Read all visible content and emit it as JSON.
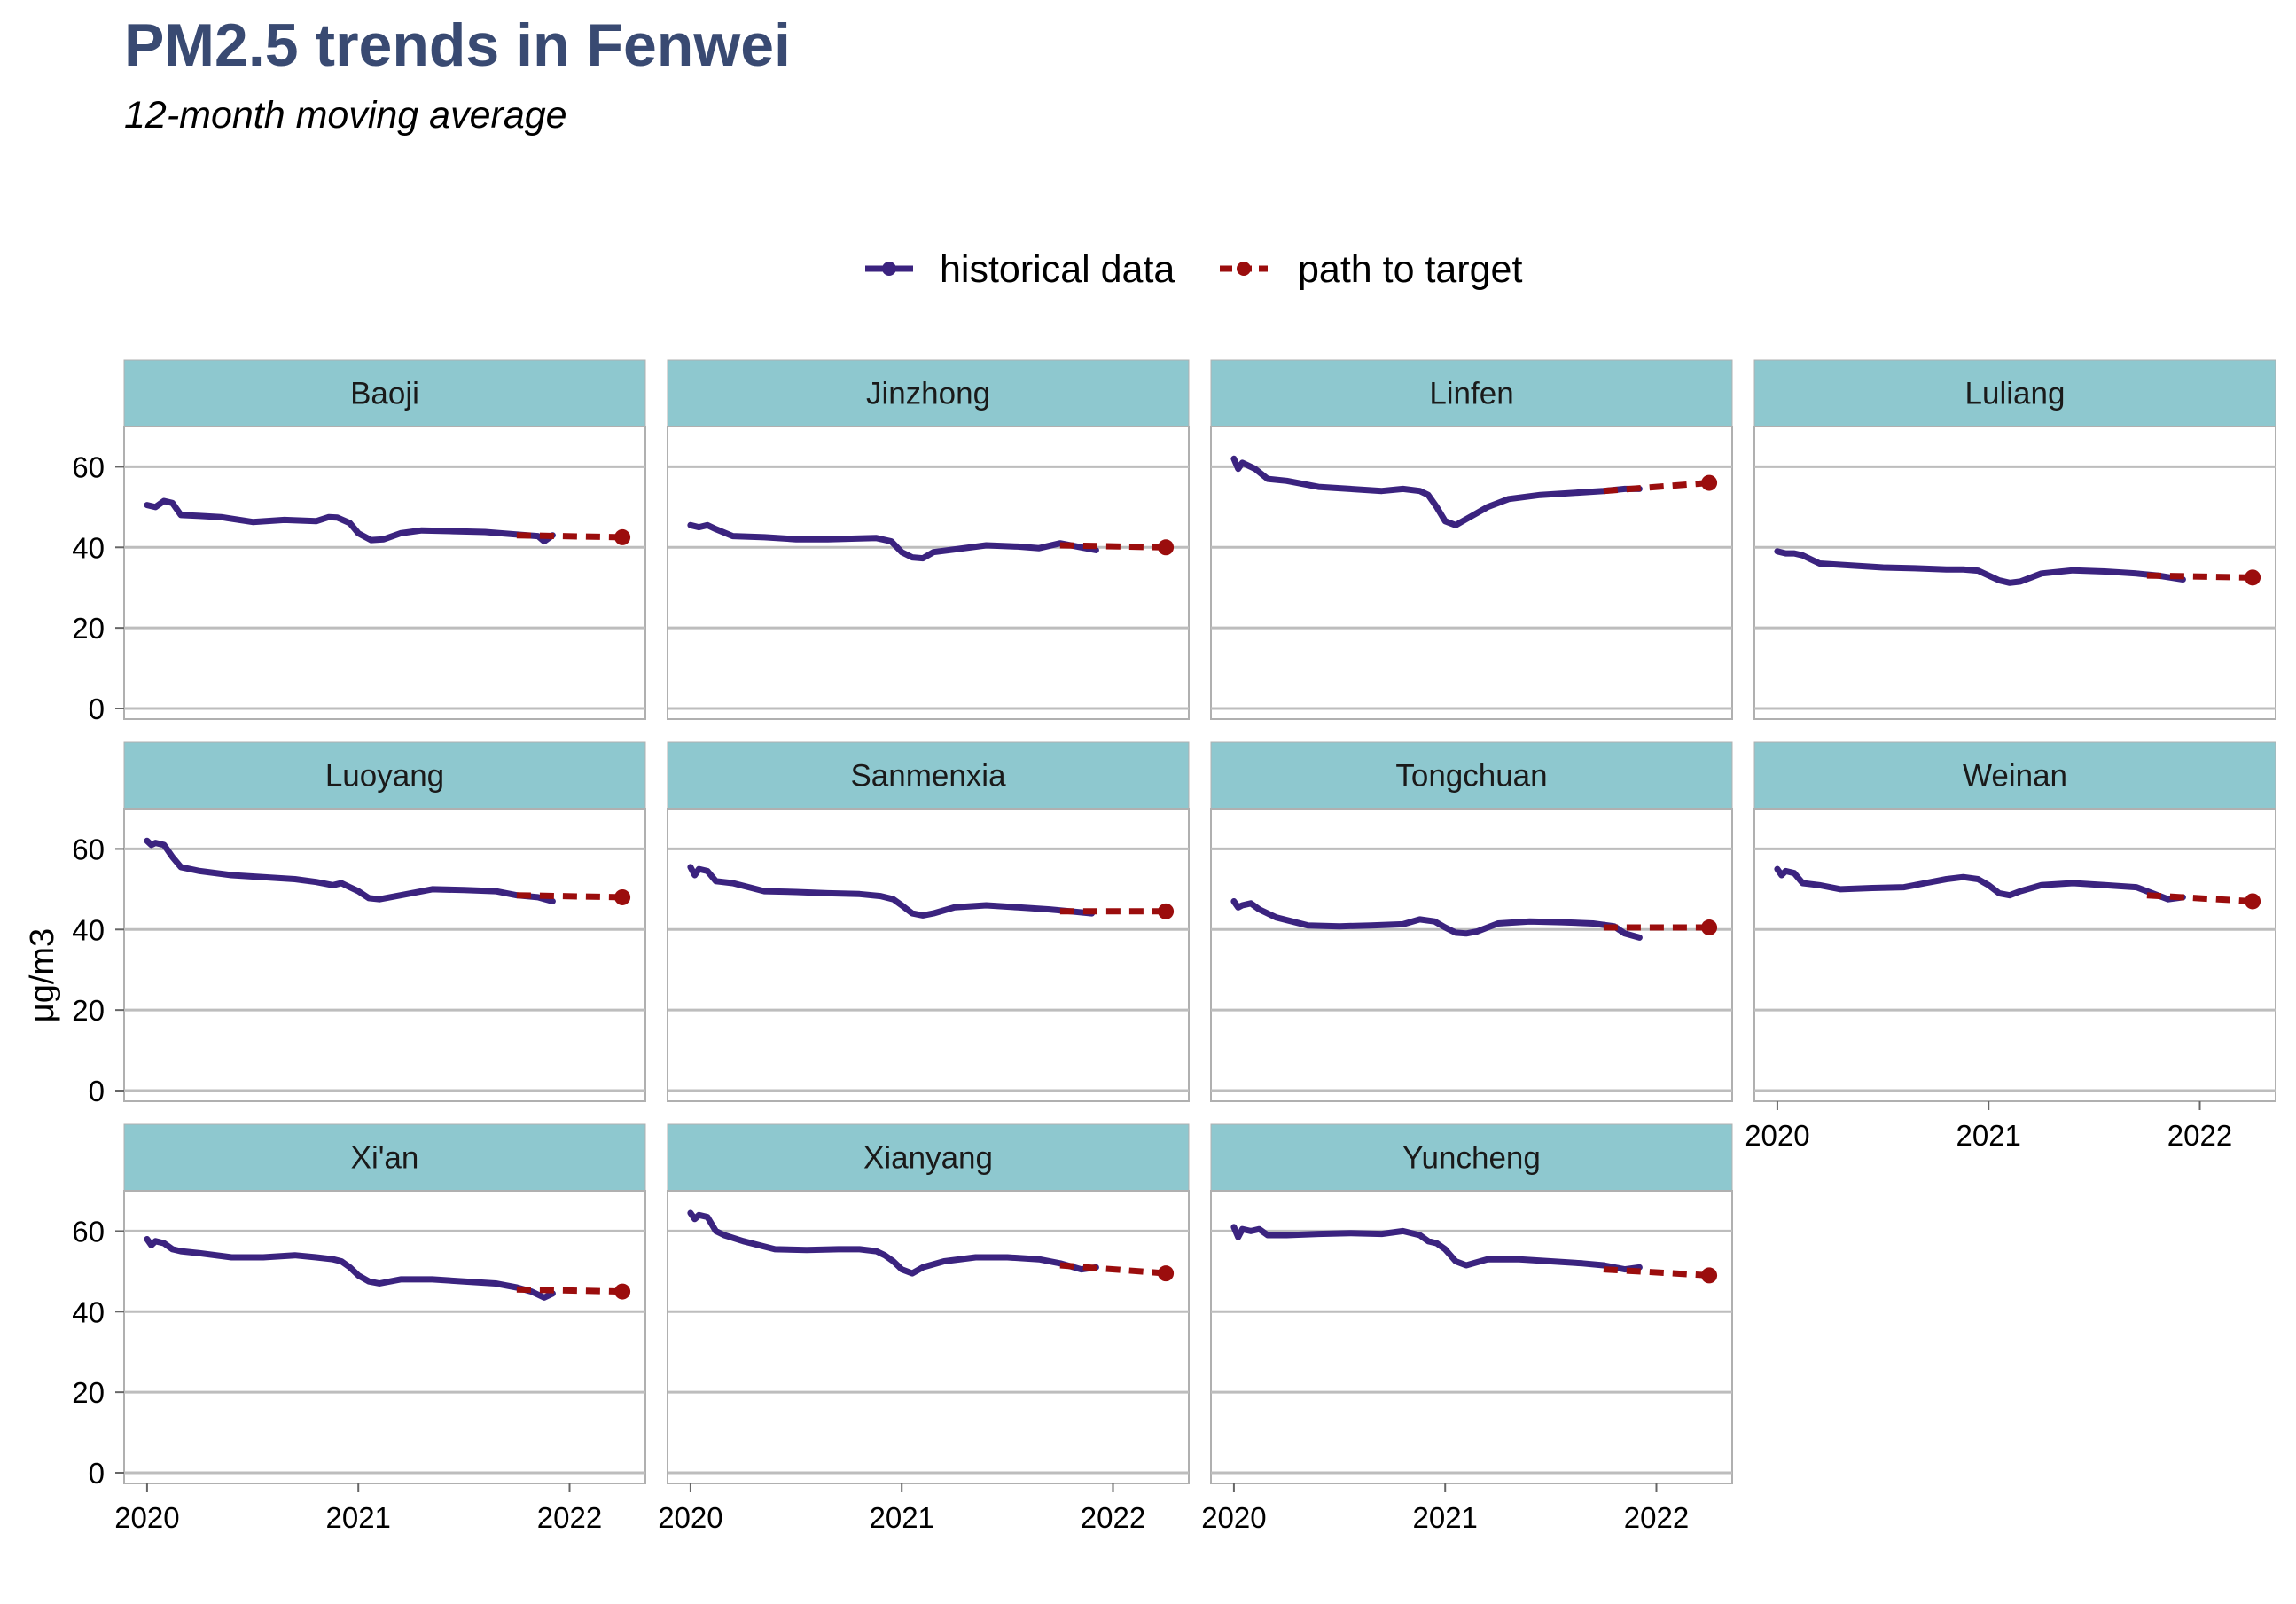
{
  "title": "PM2.5 trends in Fenwei",
  "subtitle": "12-month moving average",
  "legend": {
    "items": [
      {
        "label": "historical data",
        "color": "#3b237f",
        "style": "solid"
      },
      {
        "label": "path to target",
        "color": "#9b0d0d",
        "style": "dashed"
      }
    ]
  },
  "colors": {
    "strip": "#8ec8cf",
    "historical": "#3b237f",
    "target": "#9b0d0d",
    "grid": "#bdbdbd",
    "panel_border": "#b0b0b0"
  },
  "chart_data": {
    "type": "line",
    "facet": "city",
    "ylabel": "μg/m3",
    "xlabel": "",
    "ylim": [
      0,
      70
    ],
    "yticks": [
      0,
      20,
      40,
      60
    ],
    "xlim": [
      2019.95,
      2022.3
    ],
    "xticks": [
      2020,
      2021,
      2022
    ],
    "xtick_labels": [
      "2020",
      "2021",
      "2022"
    ],
    "grid": "horizontal",
    "legend_position": "top",
    "panels": [
      {
        "city": "Baoji",
        "historical": {
          "x": [
            2020.0,
            2020.04,
            2020.08,
            2020.12,
            2020.16,
            2020.25,
            2020.35,
            2020.5,
            2020.65,
            2020.8,
            2020.86,
            2020.9,
            2020.96,
            2021.0,
            2021.06,
            2021.12,
            2021.2,
            2021.3,
            2021.45,
            2021.6,
            2021.72,
            2021.8,
            2021.85,
            2021.88,
            2021.92
          ],
          "y": [
            50.5,
            50,
            51.5,
            51,
            48,
            47.8,
            47.5,
            46.3,
            46.8,
            46.5,
            47.5,
            47.4,
            46,
            43.5,
            41.8,
            42,
            43.5,
            44.2,
            44,
            43.8,
            43.3,
            43,
            42.8,
            41.5,
            43
          ]
        },
        "target": {
          "x": [
            2021.75,
            2022.25
          ],
          "y": [
            43,
            42.5
          ]
        }
      },
      {
        "city": "Jinzhong",
        "historical": {
          "x": [
            2020.0,
            2020.04,
            2020.08,
            2020.12,
            2020.2,
            2020.35,
            2020.5,
            2020.65,
            2020.8,
            2020.88,
            2020.95,
            2021.0,
            2021.05,
            2021.1,
            2021.15,
            2021.25,
            2021.4,
            2021.55,
            2021.65,
            2021.75,
            2021.85,
            2021.92
          ],
          "y": [
            45.5,
            45,
            45.5,
            44.5,
            42.8,
            42.5,
            42,
            42,
            42.2,
            42.3,
            41.5,
            38.8,
            37.5,
            37.3,
            38.8,
            39.5,
            40.5,
            40.2,
            39.8,
            41,
            40,
            39.3
          ]
        },
        "target": {
          "x": [
            2021.75,
            2022.25
          ],
          "y": [
            40.5,
            40
          ]
        }
      },
      {
        "city": "Linfen",
        "historical": {
          "x": [
            2020.0,
            2020.02,
            2020.04,
            2020.06,
            2020.1,
            2020.16,
            2020.25,
            2020.4,
            2020.55,
            2020.7,
            2020.8,
            2020.88,
            2020.92,
            2020.96,
            2021.0,
            2021.05,
            2021.1,
            2021.2,
            2021.3,
            2021.45,
            2021.6,
            2021.75,
            2021.85,
            2021.92
          ],
          "y": [
            62,
            59.5,
            61,
            60.5,
            59.5,
            57,
            56.5,
            55,
            54.5,
            54,
            54.5,
            54,
            53,
            50,
            46.5,
            45.5,
            47,
            50,
            52,
            53,
            53.5,
            54,
            54.5,
            54.5
          ]
        },
        "target": {
          "x": [
            2021.75,
            2022.25
          ],
          "y": [
            54,
            56
          ]
        }
      },
      {
        "city": "Luliang",
        "historical": {
          "x": [
            2020.0,
            2020.04,
            2020.08,
            2020.12,
            2020.2,
            2020.35,
            2020.5,
            2020.65,
            2020.8,
            2020.88,
            2020.95,
            2021.0,
            2021.05,
            2021.1,
            2021.15,
            2021.25,
            2021.4,
            2021.55,
            2021.7,
            2021.8,
            2021.92
          ],
          "y": [
            39,
            38.5,
            38.5,
            38,
            36,
            35.5,
            35,
            34.8,
            34.5,
            34.5,
            34.2,
            33,
            31.8,
            31.2,
            31.5,
            33.5,
            34.3,
            34,
            33.5,
            33,
            32
          ]
        },
        "target": {
          "x": [
            2021.75,
            2022.25
          ],
          "y": [
            33,
            32.5
          ]
        }
      },
      {
        "city": "Luoyang",
        "historical": {
          "x": [
            2020.0,
            2020.02,
            2020.04,
            2020.08,
            2020.12,
            2020.16,
            2020.25,
            2020.4,
            2020.55,
            2020.7,
            2020.8,
            2020.88,
            2020.92,
            2020.96,
            2021.0,
            2021.05,
            2021.1,
            2021.2,
            2021.35,
            2021.5,
            2021.65,
            2021.75,
            2021.85,
            2021.92
          ],
          "y": [
            62,
            61,
            61.5,
            61,
            58,
            55.5,
            54.5,
            53.5,
            53,
            52.5,
            51.8,
            51,
            51.5,
            50.5,
            49.5,
            47.8,
            47.5,
            48.5,
            50,
            49.8,
            49.5,
            48.5,
            48,
            47
          ]
        },
        "target": {
          "x": [
            2021.75,
            2022.25
          ],
          "y": [
            48.5,
            48
          ]
        }
      },
      {
        "city": "Sanmenxia",
        "historical": {
          "x": [
            2020.0,
            2020.02,
            2020.04,
            2020.08,
            2020.12,
            2020.2,
            2020.35,
            2020.5,
            2020.65,
            2020.8,
            2020.9,
            2020.96,
            2021.0,
            2021.05,
            2021.1,
            2021.15,
            2021.25,
            2021.4,
            2021.55,
            2021.7,
            2021.8,
            2021.9
          ],
          "y": [
            55.5,
            53.5,
            55,
            54.5,
            52,
            51.5,
            49.5,
            49.3,
            49,
            48.8,
            48.3,
            47.5,
            46,
            44,
            43.5,
            44,
            45.5,
            46,
            45.5,
            45,
            44.5,
            44
          ]
        },
        "target": {
          "x": [
            2021.75,
            2022.25
          ],
          "y": [
            44.5,
            44.5
          ]
        }
      },
      {
        "city": "Tongchuan",
        "historical": {
          "x": [
            2020.0,
            2020.02,
            2020.04,
            2020.08,
            2020.12,
            2020.2,
            2020.35,
            2020.5,
            2020.65,
            2020.8,
            2020.88,
            2020.95,
            2021.0,
            2021.05,
            2021.1,
            2021.15,
            2021.25,
            2021.4,
            2021.55,
            2021.7,
            2021.8,
            2021.85,
            2021.92
          ],
          "y": [
            47,
            45.5,
            46,
            46.5,
            45,
            43,
            41,
            40.8,
            41,
            41.3,
            42.5,
            42,
            40.5,
            39.2,
            39,
            39.5,
            41.5,
            42,
            41.8,
            41.5,
            40.8,
            39,
            38
          ]
        },
        "target": {
          "x": [
            2021.75,
            2022.25
          ],
          "y": [
            40.5,
            40.5
          ]
        }
      },
      {
        "city": "Weinan",
        "historical": {
          "x": [
            2020.0,
            2020.02,
            2020.04,
            2020.08,
            2020.12,
            2020.2,
            2020.3,
            2020.45,
            2020.6,
            2020.7,
            2020.8,
            2020.88,
            2020.95,
            2021.0,
            2021.05,
            2021.1,
            2021.15,
            2021.25,
            2021.4,
            2021.55,
            2021.7,
            2021.8,
            2021.85,
            2021.92
          ],
          "y": [
            55,
            53.5,
            54.5,
            54,
            51.5,
            51,
            50,
            50.3,
            50.5,
            51.5,
            52.5,
            53,
            52.5,
            51,
            49,
            48.5,
            49.5,
            51,
            51.5,
            51,
            50.5,
            48.5,
            47.5,
            48
          ]
        },
        "target": {
          "x": [
            2021.75,
            2022.25
          ],
          "y": [
            48.5,
            47
          ]
        }
      },
      {
        "city": "Xi'an",
        "historical": {
          "x": [
            2020.0,
            2020.02,
            2020.04,
            2020.08,
            2020.12,
            2020.16,
            2020.25,
            2020.4,
            2020.55,
            2020.7,
            2020.8,
            2020.88,
            2020.92,
            2020.96,
            2021.0,
            2021.05,
            2021.1,
            2021.2,
            2021.35,
            2021.5,
            2021.65,
            2021.75,
            2021.82,
            2021.88,
            2021.92
          ],
          "y": [
            58,
            56.5,
            57.5,
            57,
            55.5,
            55,
            54.5,
            53.5,
            53.5,
            54,
            53.5,
            53,
            52.5,
            51,
            49,
            47.5,
            47,
            48,
            48,
            47.5,
            47,
            46,
            45,
            43.5,
            44.5
          ]
        },
        "target": {
          "x": [
            2021.75,
            2022.25
          ],
          "y": [
            45.5,
            45
          ]
        }
      },
      {
        "city": "Xianyang",
        "historical": {
          "x": [
            2020.0,
            2020.02,
            2020.04,
            2020.08,
            2020.12,
            2020.16,
            2020.25,
            2020.4,
            2020.55,
            2020.7,
            2020.8,
            2020.88,
            2020.92,
            2020.96,
            2021.0,
            2021.05,
            2021.1,
            2021.2,
            2021.35,
            2021.5,
            2021.65,
            2021.75,
            2021.85,
            2021.92
          ],
          "y": [
            64.5,
            63,
            64,
            63.5,
            60,
            59,
            57.5,
            55.5,
            55.3,
            55.5,
            55.5,
            55,
            54,
            52.5,
            50.5,
            49.5,
            51,
            52.5,
            53.5,
            53.5,
            53,
            52,
            50.5,
            51
          ]
        },
        "target": {
          "x": [
            2021.75,
            2022.25
          ],
          "y": [
            51.5,
            49.5
          ]
        }
      },
      {
        "city": "Yuncheng",
        "historical": {
          "x": [
            2020.0,
            2020.02,
            2020.04,
            2020.08,
            2020.12,
            2020.16,
            2020.25,
            2020.4,
            2020.55,
            2020.7,
            2020.8,
            2020.88,
            2020.92,
            2020.96,
            2021.0,
            2021.05,
            2021.1,
            2021.2,
            2021.35,
            2021.5,
            2021.65,
            2021.75,
            2021.85,
            2021.92
          ],
          "y": [
            61,
            58.5,
            60.5,
            60,
            60.5,
            59,
            59,
            59.3,
            59.5,
            59.3,
            60,
            59,
            57.5,
            57,
            55.5,
            52.5,
            51.5,
            53,
            53,
            52.5,
            52,
            51.5,
            50.5,
            51
          ]
        },
        "target": {
          "x": [
            2021.75,
            2022.25
          ],
          "y": [
            50.5,
            49
          ]
        }
      }
    ]
  }
}
